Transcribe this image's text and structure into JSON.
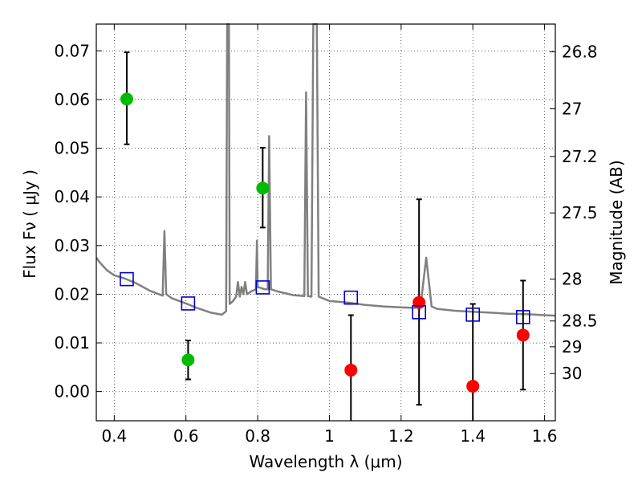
{
  "chart_data": {
    "type": "scatter",
    "title": "",
    "xlabel": "Wavelength  λ (μm)",
    "ylabel": "Flux  Fν  ( μJy )",
    "y2label": "Magnitude (AB)",
    "xlim": [
      0.35,
      1.63
    ],
    "ylim": [
      -0.006,
      0.0755
    ],
    "grid": true,
    "grid_style": "dotted",
    "x_ticks": [
      0.4,
      0.6,
      0.8,
      1.0,
      1.2,
      1.4,
      1.6
    ],
    "x_tick_labels": [
      "0.4",
      "0.6",
      "0.8",
      "1",
      "1.2",
      "1.4",
      "1.6"
    ],
    "y_ticks": [
      0.0,
      0.01,
      0.02,
      0.03,
      0.04,
      0.05,
      0.06,
      0.07
    ],
    "y_tick_labels": [
      "0.00",
      "0.01",
      "0.02",
      "0.03",
      "0.04",
      "0.05",
      "0.06",
      "0.07"
    ],
    "y2_ticks": [
      {
        "label": "26.8",
        "flux": 0.0698
      },
      {
        "label": "27",
        "flux": 0.0581
      },
      {
        "label": "27.2",
        "flux": 0.0483
      },
      {
        "label": "27.5",
        "flux": 0.0367
      },
      {
        "label": "28",
        "flux": 0.0231
      },
      {
        "label": "28.5",
        "flux": 0.0145
      },
      {
        "label": "29",
        "flux": 0.0092
      },
      {
        "label": "30",
        "flux": 0.0037
      }
    ],
    "colors": {
      "green": "#00bb00",
      "red": "#ff0000",
      "model_box": "#0000cc",
      "spectrum": "#808080",
      "errorbar": "#000000"
    },
    "series": [
      {
        "marker": "circle",
        "color": "#00bb00",
        "points": [
          {
            "x": 0.435,
            "y": 0.0601,
            "ylow": 0.0508,
            "yhigh": 0.0697
          },
          {
            "x": 0.606,
            "y": 0.0065,
            "ylow": 0.0025,
            "yhigh": 0.0105
          },
          {
            "x": 0.814,
            "y": 0.0418,
            "ylow": 0.0337,
            "yhigh": 0.0501
          }
        ]
      },
      {
        "marker": "circle",
        "color": "#ff0000",
        "points": [
          {
            "x": 1.06,
            "y": 0.0044,
            "ylow": -0.008,
            "yhigh": 0.0157
          },
          {
            "x": 1.25,
            "y": 0.0183,
            "ylow": -0.0027,
            "yhigh": 0.0395
          },
          {
            "x": 1.4,
            "y": 0.0011,
            "ylow": -0.008,
            "yhigh": 0.018
          },
          {
            "x": 1.54,
            "y": 0.0116,
            "ylow": 0.0004,
            "yhigh": 0.0228
          }
        ]
      },
      {
        "marker": "open-square",
        "color": "#0000cc",
        "points": [
          {
            "x": 0.435,
            "y": 0.0231
          },
          {
            "x": 0.606,
            "y": 0.0181
          },
          {
            "x": 0.814,
            "y": 0.0214
          },
          {
            "x": 1.06,
            "y": 0.0193
          },
          {
            "x": 1.25,
            "y": 0.0163
          },
          {
            "x": 1.4,
            "y": 0.0158
          },
          {
            "x": 1.54,
            "y": 0.0153
          }
        ]
      },
      {
        "marker": "line",
        "color": "#808080",
        "points": [
          [
            0.35,
            0.0275
          ],
          [
            0.36,
            0.0265
          ],
          [
            0.38,
            0.0249
          ],
          [
            0.4,
            0.0239
          ],
          [
            0.43,
            0.0232
          ],
          [
            0.46,
            0.0223
          ],
          [
            0.5,
            0.0207
          ],
          [
            0.535,
            0.0197
          ],
          [
            0.54,
            0.033
          ],
          [
            0.545,
            0.02
          ],
          [
            0.56,
            0.0192
          ],
          [
            0.6,
            0.0181
          ],
          [
            0.63,
            0.0172
          ],
          [
            0.67,
            0.0162
          ],
          [
            0.7,
            0.0158
          ],
          [
            0.712,
            0.0165
          ],
          [
            0.715,
            0.076
          ],
          [
            0.72,
            0.076
          ],
          [
            0.722,
            0.018
          ],
          [
            0.73,
            0.0185
          ],
          [
            0.74,
            0.0195
          ],
          [
            0.745,
            0.0225
          ],
          [
            0.75,
            0.0195
          ],
          [
            0.755,
            0.0215
          ],
          [
            0.76,
            0.02
          ],
          [
            0.765,
            0.0225
          ],
          [
            0.77,
            0.02
          ],
          [
            0.78,
            0.0205
          ],
          [
            0.795,
            0.021
          ],
          [
            0.798,
            0.031
          ],
          [
            0.8,
            0.0215
          ],
          [
            0.82,
            0.021
          ],
          [
            0.828,
            0.021
          ],
          [
            0.832,
            0.0525
          ],
          [
            0.837,
            0.021
          ],
          [
            0.86,
            0.0205
          ],
          [
            0.9,
            0.0198
          ],
          [
            0.93,
            0.0196
          ],
          [
            0.935,
            0.0615
          ],
          [
            0.94,
            0.0196
          ],
          [
            0.95,
            0.0195
          ],
          [
            0.955,
            0.076
          ],
          [
            0.965,
            0.076
          ],
          [
            0.97,
            0.0195
          ],
          [
            1.0,
            0.0186
          ],
          [
            1.05,
            0.0183
          ],
          [
            1.1,
            0.0178
          ],
          [
            1.15,
            0.0175
          ],
          [
            1.2,
            0.0173
          ],
          [
            1.24,
            0.0172
          ],
          [
            1.255,
            0.018
          ],
          [
            1.27,
            0.0275
          ],
          [
            1.285,
            0.0175
          ],
          [
            1.3,
            0.017
          ],
          [
            1.35,
            0.0166
          ],
          [
            1.4,
            0.0164
          ],
          [
            1.45,
            0.0162
          ],
          [
            1.5,
            0.016
          ],
          [
            1.55,
            0.0159
          ],
          [
            1.6,
            0.0157
          ],
          [
            1.63,
            0.0156
          ]
        ]
      }
    ]
  }
}
